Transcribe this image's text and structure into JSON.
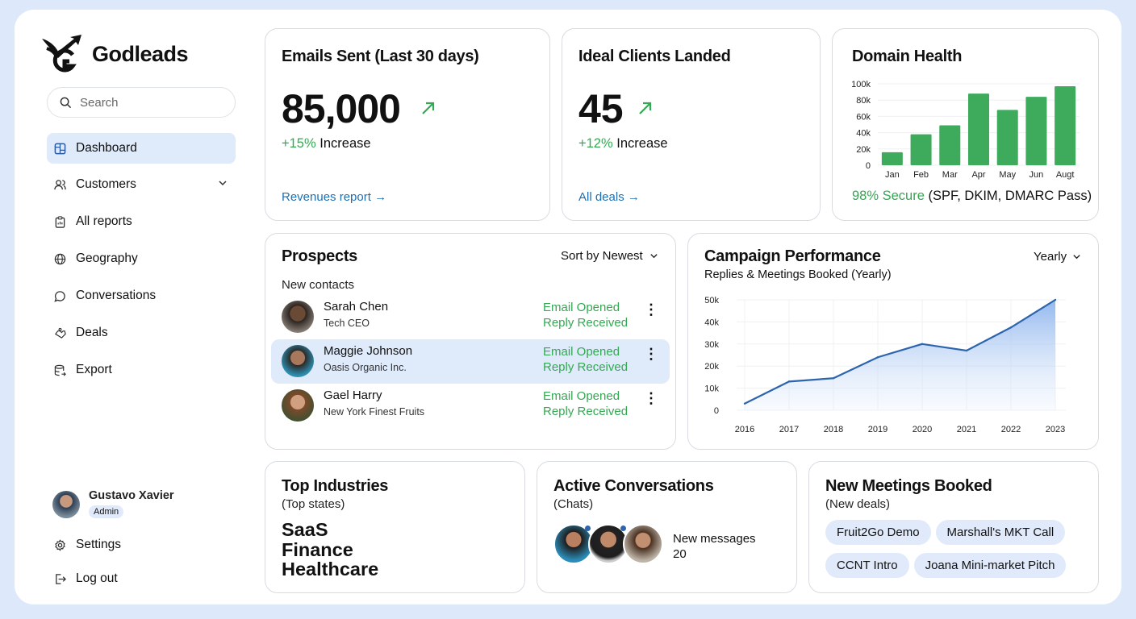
{
  "brand": {
    "name": "Godleads"
  },
  "search": {
    "placeholder": "Search"
  },
  "sidebar": {
    "items": [
      {
        "label": "Dashboard",
        "icon": "dashboard-icon",
        "active": true
      },
      {
        "label": "Customers",
        "icon": "users-icon"
      },
      {
        "label": "All reports",
        "icon": "clipboard-icon"
      },
      {
        "label": "Geography",
        "icon": "globe-icon"
      },
      {
        "label": "Conversations",
        "icon": "chat-icon"
      },
      {
        "label": "Deals",
        "icon": "deals-icon"
      },
      {
        "label": "Export",
        "icon": "database-icon"
      }
    ],
    "user": {
      "name": "Gustavo Xavier",
      "role": "Admin"
    },
    "settings": "Settings",
    "logout": "Log out"
  },
  "emails": {
    "title": "Emails Sent (Last 30 days)",
    "value": "85,000",
    "change": "+15%",
    "change_label": "Increase",
    "link": "Revenues report →"
  },
  "clients": {
    "title": "Ideal Clients Landed",
    "value": "45",
    "change": "+12%",
    "change_label": "Increase",
    "link": "All deals →"
  },
  "domain": {
    "title": "Domain Health",
    "secure": "98% Secure",
    "detail": "(SPF, DKIM, DMARC Pass)"
  },
  "prospects": {
    "title": "Prospects",
    "sort": "Sort by Newest",
    "subtitle": "New contacts",
    "rows": [
      {
        "name": "Sarah Chen",
        "company": "Tech CEO",
        "status1": "Email Opened",
        "status2": "Reply Received"
      },
      {
        "name": "Maggie Johnson",
        "company": "Oasis Organic Inc.",
        "status1": "Email Opened",
        "status2": "Reply Received",
        "selected": true
      },
      {
        "name": "Gael Harry",
        "company": "New York Finest Fruits",
        "status1": "Email Opened",
        "status2": "Reply Received"
      }
    ]
  },
  "campaign": {
    "title": "Campaign Performance",
    "subtitle": "Replies & Meetings Booked (Yearly)",
    "period": "Yearly"
  },
  "industries": {
    "title": "Top Industries",
    "subtitle": "(Top states)",
    "items": [
      "SaaS",
      "Finance",
      "Healthcare"
    ]
  },
  "conversations": {
    "title": "Active Conversations",
    "subtitle": "(Chats)",
    "label": "New messages",
    "count": "20"
  },
  "meetings": {
    "title": "New Meetings Booked",
    "subtitle": "(New deals)",
    "items": [
      "Fruit2Go Demo",
      "Marshall's MKT Call",
      "CCNT Intro",
      "Joana Mini-market Pitch"
    ]
  },
  "colors": {
    "accent": "#1f6fb2",
    "green": "#34a853",
    "nav_active": "#dfeafb",
    "line": "#2c65ad"
  },
  "chart_data": [
    {
      "type": "bar",
      "title": "Domain Health",
      "categories": [
        "Jan",
        "Feb",
        "Mar",
        "Apr",
        "May",
        "Jun",
        "Augt"
      ],
      "values": [
        16000,
        38000,
        49000,
        88000,
        68000,
        84000,
        97000
      ],
      "ylim": [
        0,
        100000
      ],
      "yticks": [
        "0",
        "20k",
        "40k",
        "60k",
        "80k",
        "100k"
      ],
      "grid": true
    },
    {
      "type": "area",
      "title": "Campaign Performance",
      "x": [
        "2016",
        "2017",
        "2018",
        "2019",
        "2020",
        "2021",
        "2022",
        "2023"
      ],
      "values": [
        3000,
        13000,
        14500,
        24000,
        30000,
        27000,
        37500,
        50000
      ],
      "ylim": [
        0,
        50000
      ],
      "yticks": [
        "0",
        "10k",
        "20k",
        "30k",
        "40k",
        "50k"
      ],
      "grid": true
    }
  ]
}
